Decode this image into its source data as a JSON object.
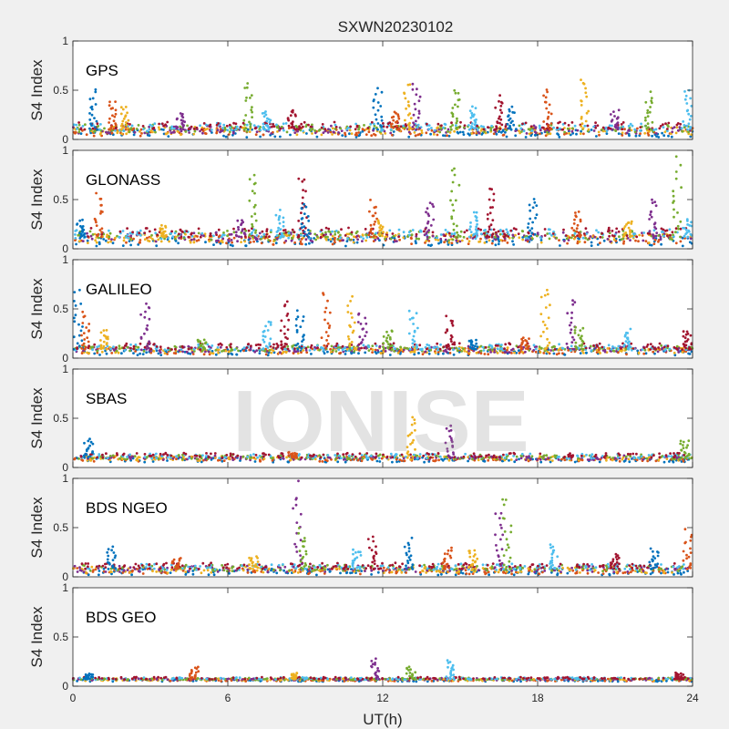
{
  "chart_data": {
    "type": "scatter",
    "title": "SXWN20230102",
    "xlabel": "UT(h)",
    "ylabel": "S4 Index",
    "xlim": [
      0,
      24
    ],
    "ylim": [
      0,
      1
    ],
    "x_ticks": [
      "0",
      "6",
      "12",
      "18",
      "24"
    ],
    "y_ticks": [
      "0",
      "0.5",
      "1"
    ],
    "watermark": "IONISE",
    "series_colors": [
      "#0072bd",
      "#d95319",
      "#edb120",
      "#7e2f8e",
      "#77ac30",
      "#4dbeee",
      "#a2142f"
    ],
    "panels": [
      {
        "label": "GPS",
        "baseline": 0.1,
        "noise": 0.05,
        "peaks": [
          [
            0.8,
            0.52
          ],
          [
            1.5,
            0.42
          ],
          [
            2.0,
            0.35
          ],
          [
            4.2,
            0.28
          ],
          [
            6.8,
            0.62
          ],
          [
            7.5,
            0.3
          ],
          [
            8.5,
            0.32
          ],
          [
            11.8,
            0.55
          ],
          [
            12.5,
            0.3
          ],
          [
            13.0,
            0.6
          ],
          [
            13.3,
            0.58
          ],
          [
            14.8,
            0.55
          ],
          [
            15.5,
            0.35
          ],
          [
            16.5,
            0.45
          ],
          [
            17.0,
            0.35
          ],
          [
            18.4,
            0.55
          ],
          [
            19.8,
            0.68
          ],
          [
            21.0,
            0.3
          ],
          [
            22.3,
            0.5
          ],
          [
            23.8,
            0.55
          ]
        ]
      },
      {
        "label": "GLONASS",
        "baseline": 0.12,
        "noise": 0.06,
        "peaks": [
          [
            0.3,
            0.3
          ],
          [
            1.0,
            0.6
          ],
          [
            3.5,
            0.25
          ],
          [
            6.5,
            0.3
          ],
          [
            7.0,
            0.83
          ],
          [
            8.0,
            0.4
          ],
          [
            8.9,
            0.8
          ],
          [
            9.0,
            0.5
          ],
          [
            11.6,
            0.5
          ],
          [
            12.0,
            0.3
          ],
          [
            13.8,
            0.5
          ],
          [
            14.8,
            0.88
          ],
          [
            15.5,
            0.4
          ],
          [
            16.2,
            0.67
          ],
          [
            17.8,
            0.55
          ],
          [
            19.5,
            0.4
          ],
          [
            21.5,
            0.3
          ],
          [
            22.5,
            0.55
          ],
          [
            23.4,
            0.95
          ],
          [
            23.8,
            0.3
          ]
        ]
      },
      {
        "label": "GALILEO",
        "baseline": 0.09,
        "noise": 0.04,
        "peaks": [
          [
            0.2,
            0.72
          ],
          [
            0.5,
            0.48
          ],
          [
            1.2,
            0.3
          ],
          [
            2.8,
            0.63
          ],
          [
            5.0,
            0.2
          ],
          [
            7.5,
            0.4
          ],
          [
            8.2,
            0.62
          ],
          [
            8.8,
            0.5
          ],
          [
            9.8,
            0.7
          ],
          [
            10.8,
            0.65
          ],
          [
            11.2,
            0.5
          ],
          [
            12.2,
            0.3
          ],
          [
            13.2,
            0.52
          ],
          [
            14.6,
            0.45
          ],
          [
            15.5,
            0.2
          ],
          [
            17.5,
            0.22
          ],
          [
            18.3,
            0.78
          ],
          [
            19.3,
            0.63
          ],
          [
            19.6,
            0.35
          ],
          [
            21.5,
            0.3
          ],
          [
            23.8,
            0.3
          ]
        ]
      },
      {
        "label": "SBAS",
        "baseline": 0.1,
        "noise": 0.03,
        "peaks": [
          [
            0.6,
            0.3
          ],
          [
            8.5,
            0.16
          ],
          [
            13.1,
            0.55
          ],
          [
            14.6,
            0.45
          ],
          [
            23.7,
            0.3
          ]
        ]
      },
      {
        "label": "BDS NGEO",
        "baseline": 0.08,
        "noise": 0.04,
        "peaks": [
          [
            1.5,
            0.32
          ],
          [
            4.0,
            0.2
          ],
          [
            7.0,
            0.22
          ],
          [
            8.7,
            0.98
          ],
          [
            8.9,
            0.5
          ],
          [
            11.0,
            0.3
          ],
          [
            11.6,
            0.42
          ],
          [
            13.0,
            0.4
          ],
          [
            14.5,
            0.3
          ],
          [
            15.5,
            0.3
          ],
          [
            16.5,
            0.7
          ],
          [
            16.8,
            0.85
          ],
          [
            18.6,
            0.35
          ],
          [
            21.0,
            0.25
          ],
          [
            22.5,
            0.3
          ],
          [
            23.8,
            0.5
          ]
        ]
      },
      {
        "label": "BDS GEO",
        "baseline": 0.07,
        "noise": 0.015,
        "peaks": [
          [
            0.6,
            0.13
          ],
          [
            4.7,
            0.2
          ],
          [
            8.5,
            0.14
          ],
          [
            11.7,
            0.3
          ],
          [
            13.1,
            0.2
          ],
          [
            14.6,
            0.27
          ],
          [
            23.5,
            0.14
          ]
        ]
      }
    ]
  }
}
